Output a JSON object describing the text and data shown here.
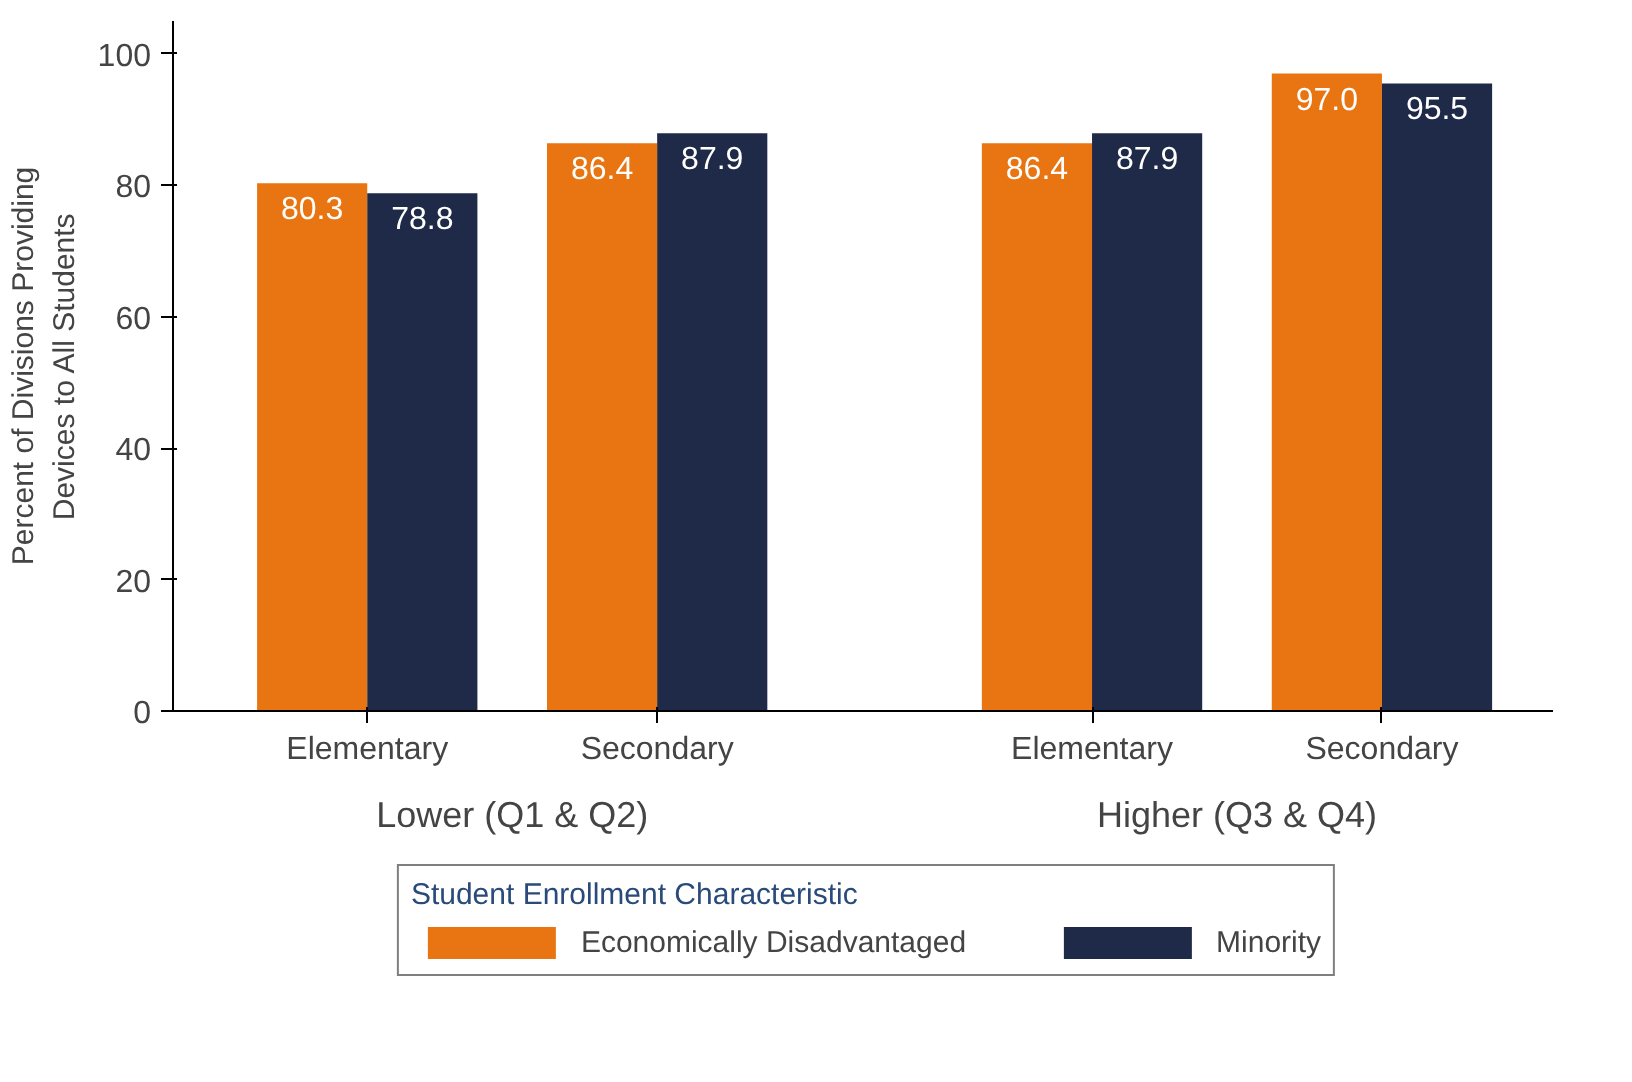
{
  "chart_data": {
    "type": "bar",
    "ylabel": "Percent of Divisions Providing\nDevices to All Students",
    "categories": [
      "Elementary",
      "Secondary",
      "Elementary",
      "Secondary"
    ],
    "annotations": [
      "Lower (Q1 & Q2)",
      "Higher (Q3 & Q4)"
    ],
    "series": [
      {
        "name": "Economically Disadvantaged",
        "color": "#e87511",
        "values": [
          80.3,
          86.4,
          86.4,
          97.0
        ],
        "value_labels": [
          "80.3",
          "86.4",
          "86.4",
          "97.0"
        ]
      },
      {
        "name": "Minority",
        "color": "#1f2a48",
        "values": [
          78.8,
          87.9,
          87.9,
          95.5
        ],
        "value_labels": [
          "78.8",
          "87.9",
          "87.9",
          "95.5"
        ]
      }
    ],
    "ylim": [
      0,
      105
    ],
    "yticks": [
      0,
      20,
      40,
      60,
      80,
      100
    ],
    "legend_title": "Student Enrollment Characteristic",
    "legend": "bottom"
  }
}
